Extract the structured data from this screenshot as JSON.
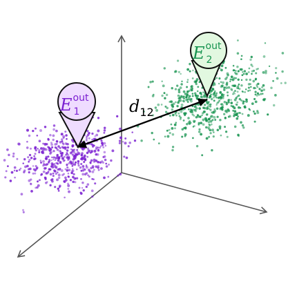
{
  "colors": {
    "cluster_1": "#7a1fd1",
    "cluster_2": "#16934f",
    "pin_1_fill": "#efdcff",
    "pin_2_fill": "#e2f8e0",
    "axes": "#555555",
    "distance_arrow": "#000000"
  },
  "clusters": [
    {
      "id": "cluster-1",
      "color_key": "cluster_1"
    },
    {
      "id": "cluster-2",
      "color_key": "cluster_2"
    }
  ],
  "markers": {
    "marker_1": {
      "letter": "E",
      "superscript": "out",
      "subscript": "1",
      "fill_key": "pin_1_fill",
      "text_key": "cluster_1"
    },
    "marker_2": {
      "letter": "E",
      "superscript": "out",
      "subscript": "2",
      "fill_key": "pin_2_fill",
      "text_key": "cluster_2"
    }
  },
  "distance_label": {
    "letter": "d",
    "subscript": "12"
  },
  "icons": {
    "axes": "3d-axes-arrows-icon",
    "pins": "map-pin-icon",
    "distance": "double-arrow-icon"
  }
}
